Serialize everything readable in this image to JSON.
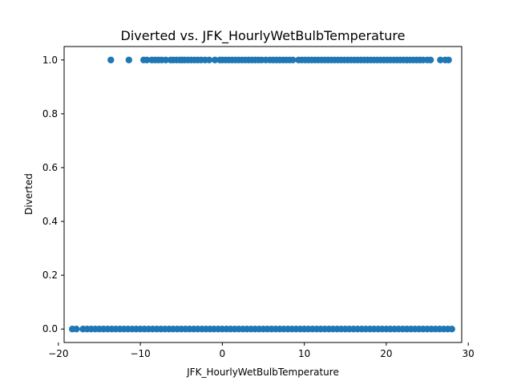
{
  "chart_data": {
    "type": "scatter",
    "title": "Diverted vs. JFK_HourlyWetBulbTemperature",
    "xlabel": "JFK_HourlyWetBulbTemperature",
    "ylabel": "Diverted",
    "xlim": [
      -19.3,
      29.2
    ],
    "ylim": [
      -0.05,
      1.05
    ],
    "xticks": [
      -20,
      -10,
      0,
      10,
      20,
      30
    ],
    "xtick_labels": [
      "−20",
      "−10",
      "0",
      "10",
      "20",
      "30"
    ],
    "yticks": [
      0.0,
      0.2,
      0.4,
      0.6,
      0.8,
      1.0
    ],
    "ytick_labels": [
      "0.0",
      "0.2",
      "0.4",
      "0.6",
      "0.8",
      "1.0"
    ],
    "grid": false,
    "marker_color": "#1f77b4",
    "series": [
      {
        "x": [
          -13.6,
          -11.4,
          -9.6,
          -9.2,
          -8.6,
          -8.2,
          -7.8,
          -7.4,
          -6.9,
          -6.3,
          -6.0,
          -5.6,
          -5.2,
          -4.9,
          -4.6,
          -4.2,
          -3.8,
          -3.4,
          -3.0,
          -2.6,
          -2.1,
          -1.6,
          -0.9,
          -0.3,
          0.0,
          0.4,
          0.8,
          1.2,
          1.6,
          2.0,
          2.4,
          2.8,
          3.2,
          3.6,
          4.0,
          4.4,
          4.8,
          5.3,
          5.8,
          6.2,
          6.6,
          7.0,
          7.4,
          7.8,
          8.2,
          8.6,
          9.3,
          9.7,
          10.1,
          10.5,
          10.9,
          11.3,
          11.7,
          12.1,
          12.5,
          12.9,
          13.3,
          13.7,
          14.1,
          14.5,
          14.9,
          15.3,
          15.7,
          16.1,
          16.5,
          16.9,
          17.3,
          17.7,
          18.1,
          18.5,
          18.9,
          19.3,
          19.7,
          20.1,
          20.5,
          20.9,
          21.3,
          21.7,
          22.1,
          22.5,
          22.9,
          23.3,
          23.7,
          24.1,
          24.5,
          25.0,
          25.4,
          26.6,
          27.2,
          27.6
        ],
        "y": [
          1,
          1,
          1,
          1,
          1,
          1,
          1,
          1,
          1,
          1,
          1,
          1,
          1,
          1,
          1,
          1,
          1,
          1,
          1,
          1,
          1,
          1,
          1,
          1,
          1,
          1,
          1,
          1,
          1,
          1,
          1,
          1,
          1,
          1,
          1,
          1,
          1,
          1,
          1,
          1,
          1,
          1,
          1,
          1,
          1,
          1,
          1,
          1,
          1,
          1,
          1,
          1,
          1,
          1,
          1,
          1,
          1,
          1,
          1,
          1,
          1,
          1,
          1,
          1,
          1,
          1,
          1,
          1,
          1,
          1,
          1,
          1,
          1,
          1,
          1,
          1,
          1,
          1,
          1,
          1,
          1,
          1,
          1,
          1,
          1,
          1,
          1,
          1,
          1,
          1
        ]
      },
      {
        "x": [
          -18.3,
          -17.8,
          -17.0,
          -16.5,
          -16.0,
          -15.5,
          -15.0,
          -14.5,
          -14.0,
          -13.5,
          -13.0,
          -12.5,
          -12.0,
          -11.5,
          -11.0,
          -10.5,
          -10.0,
          -9.5,
          -9.0,
          -8.5,
          -8.0,
          -7.5,
          -7.0,
          -6.5,
          -6.0,
          -5.5,
          -5.0,
          -4.5,
          -4.0,
          -3.5,
          -3.0,
          -2.5,
          -2.0,
          -1.5,
          -1.0,
          -0.5,
          0.0,
          0.5,
          1.0,
          1.5,
          2.0,
          2.5,
          3.0,
          3.5,
          4.0,
          4.5,
          5.0,
          5.5,
          6.0,
          6.5,
          7.0,
          7.5,
          8.0,
          8.5,
          9.0,
          9.5,
          10.0,
          10.5,
          11.0,
          11.5,
          12.0,
          12.5,
          13.0,
          13.5,
          14.0,
          14.5,
          15.0,
          15.5,
          16.0,
          16.5,
          17.0,
          17.5,
          18.0,
          18.5,
          19.0,
          19.5,
          20.0,
          20.5,
          21.0,
          21.5,
          22.0,
          22.5,
          23.0,
          23.5,
          24.0,
          24.5,
          25.0,
          25.5,
          26.0,
          26.5,
          27.0,
          27.5,
          28.0
        ],
        "y": [
          0,
          0,
          0,
          0,
          0,
          0,
          0,
          0,
          0,
          0,
          0,
          0,
          0,
          0,
          0,
          0,
          0,
          0,
          0,
          0,
          0,
          0,
          0,
          0,
          0,
          0,
          0,
          0,
          0,
          0,
          0,
          0,
          0,
          0,
          0,
          0,
          0,
          0,
          0,
          0,
          0,
          0,
          0,
          0,
          0,
          0,
          0,
          0,
          0,
          0,
          0,
          0,
          0,
          0,
          0,
          0,
          0,
          0,
          0,
          0,
          0,
          0,
          0,
          0,
          0,
          0,
          0,
          0,
          0,
          0,
          0,
          0,
          0,
          0,
          0,
          0,
          0,
          0,
          0,
          0,
          0,
          0,
          0,
          0,
          0,
          0,
          0,
          0,
          0,
          0,
          0,
          0,
          0
        ]
      }
    ]
  }
}
